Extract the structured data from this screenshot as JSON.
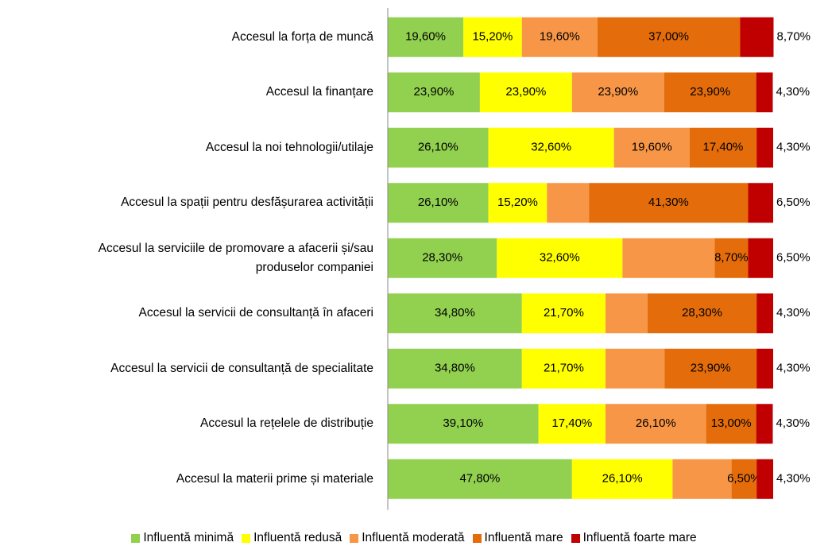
{
  "chart_data": {
    "type": "stacked-bar-horizontal",
    "categories": [
      "Accesul la forța de muncă",
      "Accesul la finanțare",
      "Accesul la noi tehnologii/utilaje",
      "Accesul la spații pentru desfășurarea activității",
      "Accesul la serviciile de promovare a afacerii și/sau\nproduselor companiei",
      "Accesul la servicii de consultanță în afaceri",
      "Accesul la servicii de consultanță de specialitate",
      "Accesul la rețelele de distribuție",
      "Accesul la materii prime și materiale"
    ],
    "xlim": [
      0,
      100
    ],
    "series": [
      {
        "name": "Influentă minimă",
        "color": "#92d050",
        "values": [
          19.6,
          23.9,
          26.1,
          26.1,
          28.3,
          34.8,
          34.8,
          39.1,
          47.8
        ],
        "value_labels": [
          "19,60%",
          "23,90%",
          "26,10%",
          "26,10%",
          "28,30%",
          "34,80%",
          "34,80%",
          "39,10%",
          "47,80%"
        ]
      },
      {
        "name": "Influentă redusă",
        "color": "#ffff00",
        "values": [
          15.2,
          23.9,
          32.6,
          15.2,
          32.6,
          21.7,
          21.7,
          17.4,
          26.1
        ],
        "value_labels": [
          "15,20%",
          "23,90%",
          "32,60%",
          "15,20%",
          "32,60%",
          "21,70%",
          "21,70%",
          "17,40%",
          "26,10%"
        ]
      },
      {
        "name": "Influentă moderată",
        "color": "#f79646",
        "values": [
          19.6,
          23.9,
          19.6,
          10.9,
          23.9,
          10.9,
          15.3,
          26.1,
          15.3
        ],
        "value_labels": [
          "19,60%",
          "23,90%",
          "19,60%",
          null,
          null,
          null,
          null,
          "26,10%",
          null
        ]
      },
      {
        "name": "Influentă mare",
        "color": "#e46c0a",
        "values": [
          37.0,
          23.9,
          17.4,
          41.3,
          8.7,
          28.3,
          23.9,
          13.0,
          6.5
        ],
        "value_labels": [
          "37,00%",
          "23,90%",
          "17,40%",
          "41,30%",
          "8,70%",
          "28,30%",
          "23,90%",
          "13,00%",
          "6,50%"
        ]
      },
      {
        "name": "Influentă foarte mare",
        "color": "#c00000",
        "values": [
          8.7,
          4.3,
          4.3,
          6.5,
          6.5,
          4.3,
          4.3,
          4.3,
          4.3
        ],
        "value_labels": [
          "8,70%",
          "4,30%",
          "4,30%",
          "6,50%",
          "6,50%",
          "4,30%",
          "4,30%",
          "4,30%",
          "4,30%"
        ]
      }
    ]
  }
}
